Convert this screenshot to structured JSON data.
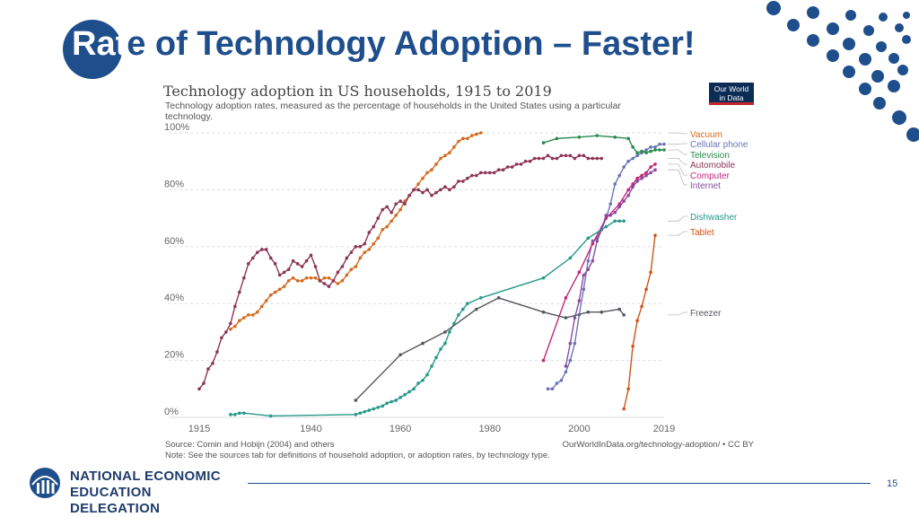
{
  "slide": {
    "title_highlight": "Rat",
    "title_rest": "e of Technology Adoption – Faster!",
    "page_number": "15",
    "org_line1": "NATIONAL ECONOMIC",
    "org_line2": "EDUCATION DELEGATION"
  },
  "owid_logo": {
    "line1": "Our World",
    "line2": "in Data"
  },
  "colors": {
    "brand_blue": "#1f4e8c",
    "owid_red": "#b13546"
  },
  "chart_data": {
    "type": "line",
    "title": "Technology adoption in US households, 1915 to 2019",
    "subtitle_line1": "Technology adoption rates, measured as the percentage of households in the United States using a particular",
    "subtitle_line2": "technology.",
    "xlim": [
      1915,
      2019
    ],
    "ylim": [
      0,
      100
    ],
    "x_ticks": [
      "1915",
      "1940",
      "1960",
      "1980",
      "2000",
      "2019"
    ],
    "x_tick_values": [
      1915,
      1940,
      1960,
      1980,
      2000,
      2019
    ],
    "y_ticks": [
      "0%",
      "20%",
      "40%",
      "60%",
      "80%",
      "100%"
    ],
    "y_tick_values": [
      0,
      20,
      40,
      60,
      80,
      100
    ],
    "source": "Source: Comin and Hobijn (2004) and others",
    "note": "Note: See the sources tab for definitions of household adoption, or adoption rates, by technology type.",
    "credit": "OurWorldInData.org/technology-adoption/ • CC BY",
    "series": [
      {
        "name": "Vacuum",
        "color": "#d36b1f",
        "points": [
          [
            1915,
            null
          ]
        ],
        "data": [
          [
            1922,
            31
          ],
          [
            1923,
            32
          ],
          [
            1924,
            34
          ],
          [
            1925,
            35
          ],
          [
            1926,
            36
          ],
          [
            1927,
            36
          ],
          [
            1928,
            37
          ],
          [
            1929,
            39
          ],
          [
            1930,
            41
          ],
          [
            1931,
            43
          ],
          [
            1932,
            44
          ],
          [
            1933,
            45
          ],
          [
            1934,
            46
          ],
          [
            1935,
            48
          ],
          [
            1936,
            49
          ],
          [
            1937,
            48
          ],
          [
            1938,
            48
          ],
          [
            1939,
            49
          ],
          [
            1940,
            49
          ],
          [
            1941,
            49
          ],
          [
            1942,
            48
          ],
          [
            1943,
            49
          ],
          [
            1944,
            49
          ],
          [
            1945,
            48
          ],
          [
            1946,
            47
          ],
          [
            1947,
            48
          ],
          [
            1948,
            50
          ],
          [
            1949,
            52
          ],
          [
            1950,
            53
          ],
          [
            1951,
            56
          ],
          [
            1952,
            58
          ],
          [
            1953,
            59
          ],
          [
            1954,
            61
          ],
          [
            1955,
            63
          ],
          [
            1956,
            66
          ],
          [
            1957,
            67
          ],
          [
            1958,
            69
          ],
          [
            1959,
            71
          ],
          [
            1960,
            73
          ],
          [
            1961,
            76
          ],
          [
            1962,
            78
          ],
          [
            1963,
            80
          ],
          [
            1964,
            82
          ],
          [
            1965,
            84
          ],
          [
            1966,
            86
          ],
          [
            1967,
            87
          ],
          [
            1968,
            89
          ],
          [
            1969,
            91
          ],
          [
            1970,
            92
          ],
          [
            1971,
            93
          ],
          [
            1972,
            95
          ],
          [
            1973,
            97
          ],
          [
            1974,
            98
          ],
          [
            1975,
            98
          ],
          [
            1976,
            99
          ],
          [
            1977,
            99.5
          ],
          [
            1978,
            100
          ]
        ]
      },
      {
        "name": "Cellular phone",
        "color": "#6b74b6",
        "data": [
          [
            1993,
            10
          ],
          [
            1994,
            10
          ],
          [
            1995,
            12
          ],
          [
            1996,
            13
          ],
          [
            1997,
            16
          ],
          [
            1998,
            20
          ],
          [
            1999,
            26
          ],
          [
            2000,
            36
          ],
          [
            2001,
            45
          ],
          [
            2002,
            55
          ],
          [
            2003,
            62
          ],
          [
            2004,
            63
          ],
          [
            2005,
            66
          ],
          [
            2006,
            70
          ],
          [
            2007,
            75
          ],
          [
            2008,
            82
          ],
          [
            2009,
            85
          ],
          [
            2010,
            88
          ],
          [
            2011,
            90
          ],
          [
            2012,
            91
          ],
          [
            2013,
            92
          ],
          [
            2014,
            93
          ],
          [
            2015,
            94
          ],
          [
            2016,
            95
          ],
          [
            2017,
            95
          ],
          [
            2018,
            96
          ],
          [
            2019,
            96
          ]
        ]
      },
      {
        "name": "Television",
        "color": "#2a8a4f",
        "data": [
          [
            1992,
            96.5
          ],
          [
            1995,
            98
          ],
          [
            2000,
            98.5
          ],
          [
            2004,
            99
          ],
          [
            2008,
            98.5
          ],
          [
            2011,
            98
          ],
          [
            2012,
            95
          ],
          [
            2013,
            93
          ],
          [
            2014,
            93.5
          ],
          [
            2015,
            93
          ],
          [
            2016,
            93.5
          ],
          [
            2017,
            94
          ],
          [
            2018,
            94
          ],
          [
            2019,
            94
          ]
        ]
      },
      {
        "name": "Automobile",
        "color": "#8c3556",
        "data": [
          [
            1915,
            10
          ],
          [
            1916,
            12
          ],
          [
            1917,
            17
          ],
          [
            1918,
            19
          ],
          [
            1919,
            23
          ],
          [
            1920,
            28
          ],
          [
            1921,
            30
          ],
          [
            1922,
            33
          ],
          [
            1923,
            39
          ],
          [
            1924,
            44
          ],
          [
            1925,
            49
          ],
          [
            1926,
            54
          ],
          [
            1927,
            56
          ],
          [
            1928,
            58
          ],
          [
            1929,
            59
          ],
          [
            1930,
            59
          ],
          [
            1931,
            56
          ],
          [
            1932,
            54
          ],
          [
            1933,
            50
          ],
          [
            1934,
            51
          ],
          [
            1935,
            52
          ],
          [
            1936,
            55
          ],
          [
            1937,
            54
          ],
          [
            1938,
            53
          ],
          [
            1939,
            55
          ],
          [
            1940,
            57
          ],
          [
            1941,
            53
          ],
          [
            1942,
            48
          ],
          [
            1943,
            47
          ],
          [
            1944,
            46
          ],
          [
            1945,
            48
          ],
          [
            1946,
            51
          ],
          [
            1947,
            53
          ],
          [
            1948,
            56
          ],
          [
            1949,
            58
          ],
          [
            1950,
            60
          ],
          [
            1951,
            60
          ],
          [
            1952,
            61
          ],
          [
            1953,
            65
          ],
          [
            1954,
            67
          ],
          [
            1955,
            70
          ],
          [
            1956,
            73
          ],
          [
            1957,
            74
          ],
          [
            1958,
            72
          ],
          [
            1959,
            75
          ],
          [
            1960,
            76
          ],
          [
            1961,
            75
          ],
          [
            1962,
            78
          ],
          [
            1963,
            80
          ],
          [
            1964,
            80
          ],
          [
            1965,
            79
          ],
          [
            1966,
            80
          ],
          [
            1967,
            78
          ],
          [
            1968,
            79
          ],
          [
            1969,
            80
          ],
          [
            1970,
            81
          ],
          [
            1971,
            80
          ],
          [
            1972,
            81
          ],
          [
            1973,
            83
          ],
          [
            1974,
            83
          ],
          [
            1975,
            84
          ],
          [
            1976,
            85
          ],
          [
            1977,
            85
          ],
          [
            1978,
            86
          ],
          [
            1979,
            86
          ],
          [
            1980,
            86
          ],
          [
            1981,
            86
          ],
          [
            1982,
            87
          ],
          [
            1983,
            87
          ],
          [
            1984,
            88
          ],
          [
            1985,
            88
          ],
          [
            1986,
            89
          ],
          [
            1987,
            89
          ],
          [
            1988,
            90
          ],
          [
            1989,
            90
          ],
          [
            1990,
            91
          ],
          [
            1991,
            91
          ],
          [
            1992,
            91
          ],
          [
            1993,
            92
          ],
          [
            1994,
            91
          ],
          [
            1995,
            91
          ],
          [
            1996,
            92
          ],
          [
            1997,
            92
          ],
          [
            1998,
            92
          ],
          [
            1999,
            91
          ],
          [
            2000,
            92
          ],
          [
            2001,
            92
          ],
          [
            2002,
            91
          ],
          [
            2003,
            91
          ],
          [
            2004,
            91
          ],
          [
            2005,
            91
          ]
        ]
      },
      {
        "name": "Computer",
        "color": "#c6257a",
        "data": [
          [
            1992,
            20
          ],
          [
            1997,
            42
          ],
          [
            2000,
            51
          ],
          [
            2003,
            61
          ],
          [
            2006,
            70
          ],
          [
            2009,
            75
          ],
          [
            2011,
            80
          ],
          [
            2012,
            82
          ],
          [
            2013,
            84
          ],
          [
            2014,
            85
          ],
          [
            2015,
            86
          ],
          [
            2016,
            88
          ],
          [
            2017,
            89
          ]
        ]
      },
      {
        "name": "Internet",
        "color": "#8a4aa0",
        "data": [
          [
            1997,
            18
          ],
          [
            1998,
            26
          ],
          [
            1999,
            35
          ],
          [
            2000,
            41
          ],
          [
            2001,
            50
          ],
          [
            2002,
            52
          ],
          [
            2003,
            55
          ],
          [
            2004,
            62
          ],
          [
            2005,
            66
          ],
          [
            2006,
            71
          ],
          [
            2007,
            71
          ],
          [
            2008,
            72
          ],
          [
            2009,
            74
          ],
          [
            2010,
            76
          ],
          [
            2011,
            78
          ],
          [
            2012,
            81
          ],
          [
            2013,
            83
          ],
          [
            2014,
            84
          ],
          [
            2015,
            85
          ],
          [
            2016,
            86
          ],
          [
            2017,
            87
          ]
        ]
      },
      {
        "name": "Dishwasher",
        "color": "#26988a",
        "data": [
          [
            1922,
            1
          ],
          [
            1923,
            1
          ],
          [
            1924,
            1.5
          ],
          [
            1925,
            1.5
          ],
          [
            1931,
            0.5
          ],
          [
            1950,
            1
          ],
          [
            1951,
            1.5
          ],
          [
            1952,
            2
          ],
          [
            1953,
            2.5
          ],
          [
            1954,
            3
          ],
          [
            1955,
            3.5
          ],
          [
            1956,
            4
          ],
          [
            1957,
            5
          ],
          [
            1958,
            5.5
          ],
          [
            1959,
            6
          ],
          [
            1960,
            7
          ],
          [
            1961,
            8
          ],
          [
            1962,
            9
          ],
          [
            1963,
            10
          ],
          [
            1964,
            12
          ],
          [
            1965,
            13
          ],
          [
            1966,
            15
          ],
          [
            1967,
            18
          ],
          [
            1968,
            21
          ],
          [
            1969,
            24
          ],
          [
            1970,
            26
          ],
          [
            1971,
            30
          ],
          [
            1972,
            33
          ],
          [
            1973,
            36
          ],
          [
            1974,
            38
          ],
          [
            1975,
            40
          ],
          [
            1978,
            42
          ],
          [
            1992,
            49
          ],
          [
            1998,
            56
          ],
          [
            2002,
            63
          ],
          [
            2006,
            67
          ],
          [
            2008,
            69
          ],
          [
            2009,
            69
          ],
          [
            2010,
            69
          ]
        ]
      },
      {
        "name": "Tablet",
        "color": "#d0521a",
        "data": [
          [
            2010,
            3
          ],
          [
            2011,
            10
          ],
          [
            2012,
            25
          ],
          [
            2013,
            34
          ],
          [
            2014,
            39
          ],
          [
            2015,
            45
          ],
          [
            2016,
            51
          ],
          [
            2017,
            64
          ]
        ]
      },
      {
        "name": "Freezer",
        "color": "#55575f",
        "data": [
          [
            1950,
            6
          ],
          [
            1960,
            22
          ],
          [
            1965,
            26
          ],
          [
            1970,
            30
          ],
          [
            1977,
            38
          ],
          [
            1982,
            42
          ],
          [
            1992,
            37
          ],
          [
            1997,
            35
          ],
          [
            2002,
            37
          ],
          [
            2005,
            37
          ],
          [
            2009,
            38
          ],
          [
            2010,
            36
          ]
        ]
      }
    ]
  }
}
